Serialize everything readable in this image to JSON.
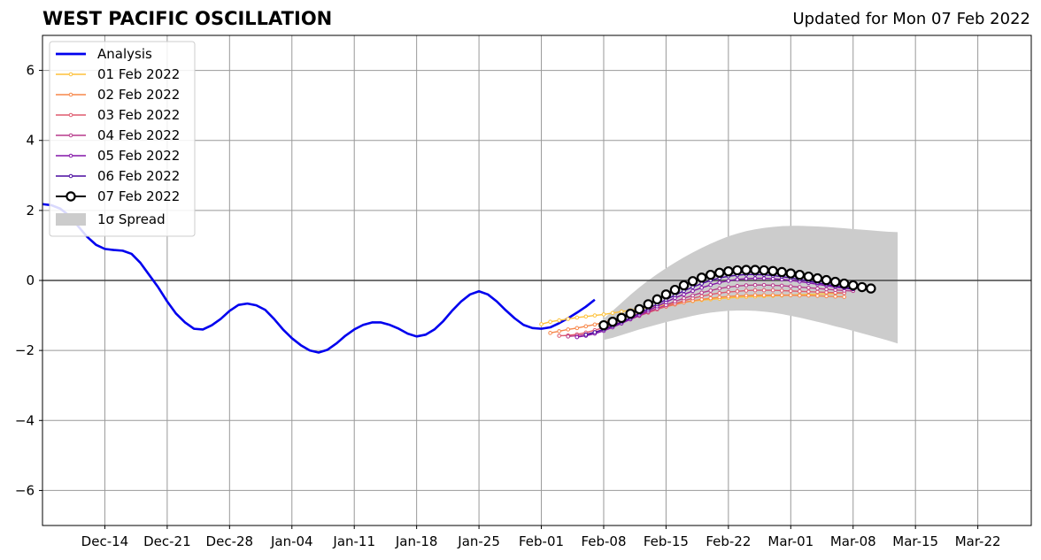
{
  "chart_data": {
    "type": "line",
    "title": "WEST PACIFIC OSCILLATION",
    "subtitle": "Updated for Mon 07 Feb 2022",
    "xlabel": "",
    "ylabel": "",
    "xlim": [
      "2021-12-07",
      "2022-03-28"
    ],
    "ylim": [
      -7,
      7
    ],
    "grid": true,
    "legend_position": "upper-left",
    "x_ticks": [
      {
        "date": "2021-12-14",
        "label": "Dec-14"
      },
      {
        "date": "2021-12-21",
        "label": "Dec-21"
      },
      {
        "date": "2021-12-28",
        "label": "Dec-28"
      },
      {
        "date": "2022-01-04",
        "label": "Jan-04"
      },
      {
        "date": "2022-01-11",
        "label": "Jan-11"
      },
      {
        "date": "2022-01-18",
        "label": "Jan-18"
      },
      {
        "date": "2022-01-25",
        "label": "Jan-25"
      },
      {
        "date": "2022-02-01",
        "label": "Feb-01"
      },
      {
        "date": "2022-02-08",
        "label": "Feb-08"
      },
      {
        "date": "2022-02-15",
        "label": "Feb-15"
      },
      {
        "date": "2022-02-22",
        "label": "Feb-22"
      },
      {
        "date": "2022-03-01",
        "label": "Mar-01"
      },
      {
        "date": "2022-03-08",
        "label": "Mar-08"
      },
      {
        "date": "2022-03-15",
        "label": "Mar-15"
      },
      {
        "date": "2022-03-22",
        "label": "Mar-22"
      }
    ],
    "y_ticks": [
      {
        "value": 6,
        "label": "6"
      },
      {
        "value": 4,
        "label": "4"
      },
      {
        "value": 2,
        "label": "2"
      },
      {
        "value": 0,
        "label": "0"
      },
      {
        "value": -2,
        "label": "−2"
      },
      {
        "value": -4,
        "label": "−4"
      },
      {
        "value": -6,
        "label": "−6"
      }
    ],
    "analysis": {
      "name": "Analysis",
      "color": "#0000ee",
      "start": "2021-12-07",
      "step_days": 1,
      "values": [
        2.18,
        2.15,
        2.05,
        1.85,
        1.55,
        1.25,
        1.02,
        0.9,
        0.87,
        0.85,
        0.76,
        0.5,
        0.15,
        -0.2,
        -0.6,
        -0.95,
        -1.2,
        -1.38,
        -1.4,
        -1.28,
        -1.1,
        -0.87,
        -0.7,
        -0.66,
        -0.71,
        -0.84,
        -1.1,
        -1.4,
        -1.65,
        -1.85,
        -2.0,
        -2.06,
        -1.98,
        -1.8,
        -1.58,
        -1.4,
        -1.27,
        -1.2,
        -1.2,
        -1.27,
        -1.38,
        -1.52,
        -1.6,
        -1.55,
        -1.4,
        -1.16,
        -0.86,
        -0.6,
        -0.4,
        -0.31,
        -0.4,
        -0.6,
        -0.85,
        -1.08,
        -1.27,
        -1.36,
        -1.38,
        -1.34,
        -1.22,
        -1.08,
        -0.92,
        -0.75,
        -0.55
      ]
    },
    "forecasts": [
      {
        "name": "01 Feb 2022",
        "color": "#fdc13a",
        "start": "2022-02-01",
        "values": [
          -1.25,
          -1.18,
          -1.14,
          -1.1,
          -1.06,
          -1.03,
          -1.0,
          -0.97,
          -0.93,
          -0.89,
          -0.85,
          -0.81,
          -0.77,
          -0.73,
          -0.69,
          -0.65,
          -0.62,
          -0.59,
          -0.56,
          -0.54,
          -0.52,
          -0.5,
          -0.48,
          -0.47,
          -0.46,
          -0.45,
          -0.44,
          -0.43,
          -0.42,
          -0.41,
          -0.4,
          -0.39,
          -0.38,
          -0.37,
          -0.36
        ]
      },
      {
        "name": "02 Feb 2022",
        "color": "#f7874a",
        "start": "2022-02-02",
        "values": [
          -1.5,
          -1.45,
          -1.4,
          -1.36,
          -1.31,
          -1.26,
          -1.2,
          -1.14,
          -1.08,
          -1.01,
          -0.95,
          -0.88,
          -0.81,
          -0.75,
          -0.69,
          -0.63,
          -0.58,
          -0.54,
          -0.51,
          -0.48,
          -0.46,
          -0.44,
          -0.43,
          -0.42,
          -0.42,
          -0.42,
          -0.42,
          -0.42,
          -0.43,
          -0.43,
          -0.44,
          -0.45,
          -0.46,
          -0.47
        ]
      },
      {
        "name": "03 Feb 2022",
        "color": "#df5a6f",
        "start": "2022-02-03",
        "values": [
          -1.58,
          -1.57,
          -1.54,
          -1.49,
          -1.42,
          -1.35,
          -1.27,
          -1.19,
          -1.1,
          -1.01,
          -0.92,
          -0.83,
          -0.74,
          -0.66,
          -0.58,
          -0.51,
          -0.45,
          -0.4,
          -0.36,
          -0.33,
          -0.31,
          -0.29,
          -0.28,
          -0.28,
          -0.28,
          -0.29,
          -0.3,
          -0.31,
          -0.32,
          -0.33,
          -0.34,
          -0.35,
          -0.36
        ]
      },
      {
        "name": "04 Feb 2022",
        "color": "#b73a8c",
        "start": "2022-02-04",
        "values": [
          -1.6,
          -1.58,
          -1.54,
          -1.48,
          -1.4,
          -1.31,
          -1.21,
          -1.11,
          -1.01,
          -0.9,
          -0.8,
          -0.7,
          -0.6,
          -0.51,
          -0.43,
          -0.35,
          -0.29,
          -0.23,
          -0.19,
          -0.16,
          -0.14,
          -0.13,
          -0.13,
          -0.14,
          -0.15,
          -0.17,
          -0.19,
          -0.21,
          -0.23,
          -0.25,
          -0.27,
          -0.29,
          -0.3
        ]
      },
      {
        "name": "05 Feb 2022",
        "color": "#8415a8",
        "start": "2022-02-05",
        "values": [
          -1.62,
          -1.58,
          -1.52,
          -1.44,
          -1.34,
          -1.23,
          -1.11,
          -0.99,
          -0.86,
          -0.74,
          -0.62,
          -0.5,
          -0.4,
          -0.3,
          -0.21,
          -0.13,
          -0.06,
          -0.01,
          0.03,
          0.05,
          0.06,
          0.06,
          0.05,
          0.03,
          0.0,
          -0.03,
          -0.07,
          -0.11,
          -0.15,
          -0.19,
          -0.22,
          -0.25
        ]
      },
      {
        "name": "06 Feb 2022",
        "color": "#4a0aa0",
        "start": "2022-02-06",
        "values": [
          -1.55,
          -1.48,
          -1.4,
          -1.3,
          -1.19,
          -1.07,
          -0.94,
          -0.81,
          -0.68,
          -0.55,
          -0.42,
          -0.3,
          -0.19,
          -0.09,
          0.0,
          0.07,
          0.12,
          0.15,
          0.17,
          0.17,
          0.16,
          0.14,
          0.11,
          0.07,
          0.03,
          -0.02,
          -0.07,
          -0.11,
          -0.16,
          -0.2,
          -0.24
        ]
      },
      {
        "name": "07 Feb 2022",
        "color": "#000000",
        "marker": "open-circle",
        "start": "2022-02-08",
        "values": [
          -1.28,
          -1.18,
          -1.07,
          -0.95,
          -0.82,
          -0.68,
          -0.54,
          -0.4,
          -0.27,
          -0.14,
          -0.02,
          0.08,
          0.16,
          0.22,
          0.26,
          0.29,
          0.3,
          0.3,
          0.29,
          0.27,
          0.24,
          0.2,
          0.16,
          0.11,
          0.06,
          0.01,
          -0.04,
          -0.09,
          -0.14,
          -0.19,
          -0.23
        ]
      }
    ],
    "spread": {
      "name": "1σ Spread",
      "color": "#cccccc",
      "start": "2022-02-08",
      "step_days": 1,
      "upper": [
        -1.1,
        -0.87,
        -0.64,
        -0.41,
        -0.2,
        0.0,
        0.18,
        0.35,
        0.51,
        0.66,
        0.8,
        0.93,
        1.05,
        1.16,
        1.26,
        1.34,
        1.41,
        1.46,
        1.5,
        1.53,
        1.55,
        1.56,
        1.56,
        1.55,
        1.54,
        1.53,
        1.51,
        1.49,
        1.47,
        1.45,
        1.43,
        1.41,
        1.39,
        1.38
      ],
      "lower": [
        -1.7,
        -1.64,
        -1.56,
        -1.48,
        -1.4,
        -1.33,
        -1.26,
        -1.19,
        -1.13,
        -1.07,
        -1.01,
        -0.96,
        -0.92,
        -0.89,
        -0.87,
        -0.86,
        -0.86,
        -0.87,
        -0.89,
        -0.92,
        -0.96,
        -1.01,
        -1.06,
        -1.12,
        -1.18,
        -1.24,
        -1.31,
        -1.37,
        -1.44,
        -1.51,
        -1.58,
        -1.65,
        -1.72,
        -1.8
      ]
    }
  }
}
